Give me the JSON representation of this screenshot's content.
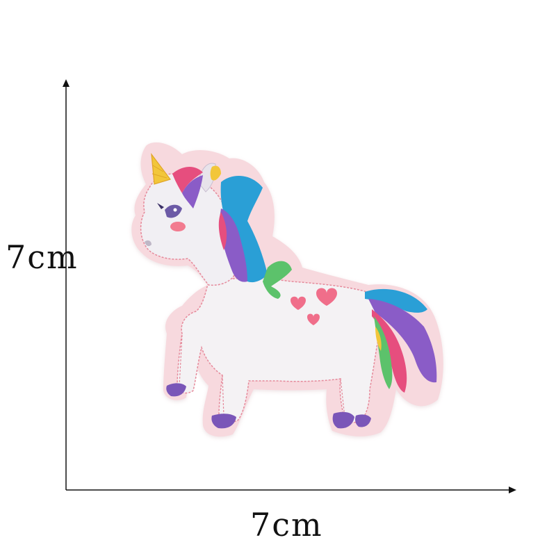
{
  "dimensions": {
    "height_label": "7cm",
    "width_label": "7cm"
  },
  "subject": {
    "icon": "unicorn-embroidered-patch-icon",
    "colors": {
      "patch_border": "#f6d4da",
      "body": "#f4f2f4",
      "stitch": "#e5899a",
      "horn": "#f2c63a",
      "mane_blue": "#2a9fd6",
      "mane_purple": "#8a5cc7",
      "mane_pink": "#e64e7e",
      "mane_green": "#5cc26b",
      "hooves": "#7a56b8",
      "cheek": "#f27b8f",
      "hearts": "#f06e8a"
    }
  },
  "axes": {
    "color": "#111111"
  }
}
